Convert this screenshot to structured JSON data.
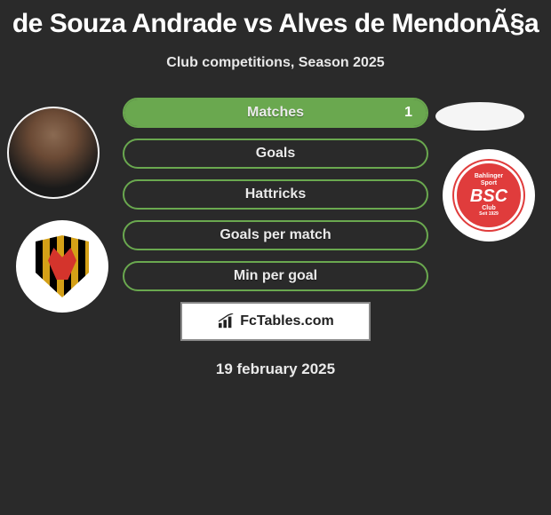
{
  "header": {
    "title": "de Souza Andrade vs Alves de MendonÃ§a",
    "subtitle": "Club competitions, Season 2025"
  },
  "left": {
    "player_name": "de Souza Andrade",
    "club_name": "Sport Recife"
  },
  "right": {
    "player_name": "Alves de MendonÃ§a",
    "club_name": "Bahlinger SC",
    "badge_top": "Bahlinger",
    "badge_mid1": "Sport",
    "badge_big": "BSC",
    "badge_mid2": "Club",
    "badge_bottom": "Seit 1929"
  },
  "stats": {
    "pill_border_color": "#6aa84f",
    "pill_fill_color": "#6aa84f",
    "rows": [
      {
        "label": "Matches",
        "left_value": null,
        "right_value": "1",
        "fill_side": "right",
        "fill_pct": 100
      },
      {
        "label": "Goals",
        "left_value": null,
        "right_value": null,
        "fill_side": "none",
        "fill_pct": 0
      },
      {
        "label": "Hattricks",
        "left_value": null,
        "right_value": null,
        "fill_side": "none",
        "fill_pct": 0
      },
      {
        "label": "Goals per match",
        "left_value": null,
        "right_value": null,
        "fill_side": "none",
        "fill_pct": 0
      },
      {
        "label": "Min per goal",
        "left_value": null,
        "right_value": null,
        "fill_side": "none",
        "fill_pct": 0
      }
    ]
  },
  "branding": {
    "text": "FcTables.com",
    "icon_name": "bar-chart-icon"
  },
  "footer": {
    "date": "19 february 2025"
  },
  "colors": {
    "background": "#2a2a2a",
    "text": "#ffffff",
    "accent": "#6aa84f",
    "branding_border": "#888888",
    "branding_bg": "#ffffff",
    "branding_text": "#222222"
  }
}
